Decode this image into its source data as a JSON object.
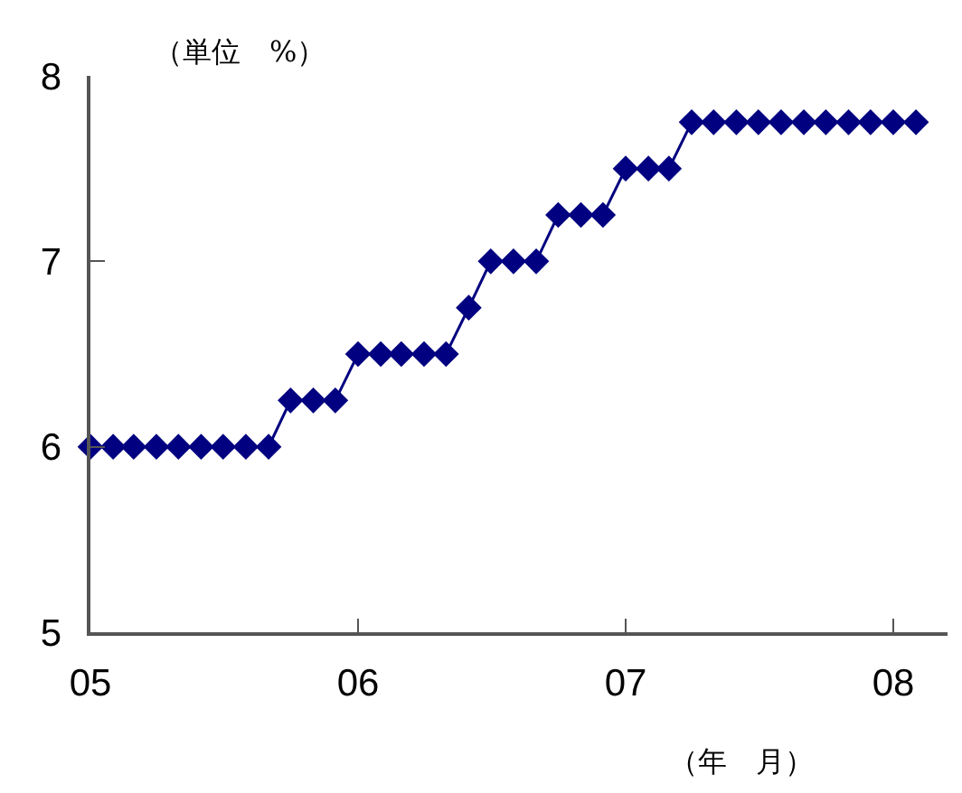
{
  "chart_data": {
    "type": "line",
    "ylabel": "（単位　%）",
    "xlabel": "（年　月）",
    "x": [
      "2005-01",
      "2005-02",
      "2005-03",
      "2005-04",
      "2005-05",
      "2005-06",
      "2005-07",
      "2005-08",
      "2005-09",
      "2005-10",
      "2005-11",
      "2005-12",
      "2006-01",
      "2006-02",
      "2006-03",
      "2006-04",
      "2006-05",
      "2006-06",
      "2006-07",
      "2006-08",
      "2006-09",
      "2006-10",
      "2006-11",
      "2006-12",
      "2007-01",
      "2007-02",
      "2007-03",
      "2007-04",
      "2007-05",
      "2007-06",
      "2007-07",
      "2007-08",
      "2007-09",
      "2007-10",
      "2007-11",
      "2007-12",
      "2008-01",
      "2008-02"
    ],
    "series": [
      {
        "color": "#000080",
        "values": [
          6,
          6,
          6,
          6,
          6,
          6,
          6,
          6,
          6,
          6.25,
          6.25,
          6.25,
          6.5,
          6.5,
          6.5,
          6.5,
          6.5,
          6.75,
          7,
          7,
          7,
          7.25,
          7.25,
          7.25,
          7.5,
          7.5,
          7.5,
          7.75,
          7.75,
          7.75,
          7.75,
          7.75,
          7.75,
          7.75,
          7.75,
          7.75,
          7.75,
          7.75
        ]
      }
    ],
    "xlim": [
      "2005-01",
      "2008-03-15"
    ],
    "xticks": [
      {
        "value": "2005-01",
        "label": "05"
      },
      {
        "value": "2006-01",
        "label": "06"
      },
      {
        "value": "2007-01",
        "label": "07"
      },
      {
        "value": "2008-01",
        "label": "08"
      }
    ],
    "ylim": [
      5,
      8
    ],
    "yticks": [
      5,
      6,
      7,
      8
    ],
    "grid": false,
    "marker": "diamond",
    "line_style": "solid"
  }
}
